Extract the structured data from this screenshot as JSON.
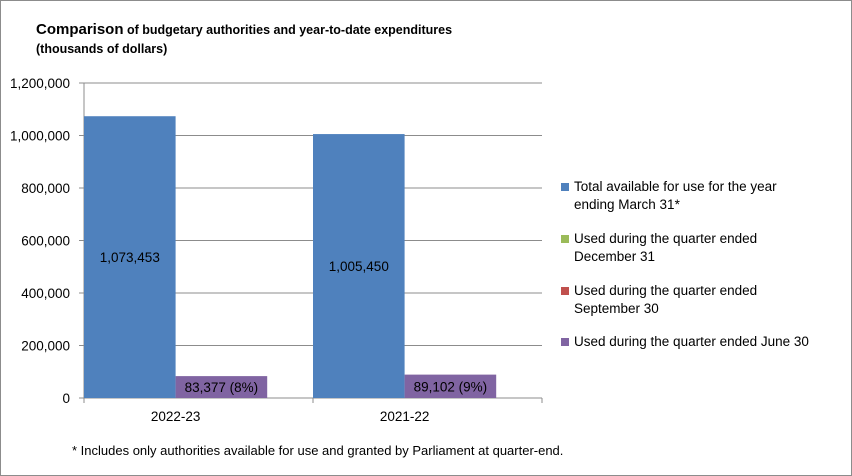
{
  "chart_data": {
    "type": "bar",
    "title_main": "Comparison",
    "title_rest": " of budgetary authorities and year-to-date expenditures",
    "subtitle": "(thousands of dollars)",
    "categories": [
      "2022-23",
      "2021-22"
    ],
    "series": [
      {
        "name": "Total available for use for the year ending March 31*",
        "values": [
          1073453,
          1005450
        ],
        "labels": [
          "1,073,453",
          "1,005,450"
        ],
        "color": "#4f81bd"
      },
      {
        "name": "Used during the quarter ended December 31",
        "values": [
          0,
          0
        ],
        "labels": [
          "",
          ""
        ],
        "color": "#9bbb59"
      },
      {
        "name": "Used during the quarter ended September 30",
        "values": [
          0,
          0
        ],
        "labels": [
          "",
          ""
        ],
        "color": "#c0504d"
      },
      {
        "name": "Used during the quarter ended June 30",
        "values": [
          83377,
          89102
        ],
        "labels": [
          "83,377 (8%)",
          "89,102 (9%)"
        ],
        "color": "#8064a2"
      }
    ],
    "ylim": [
      0,
      1200000
    ],
    "yticks": [
      0,
      200000,
      400000,
      600000,
      800000,
      1000000,
      1200000
    ],
    "ytick_labels": [
      "0",
      "200,000",
      "400,000",
      "600,000",
      "800,000",
      "1,000,000",
      "1,200,000"
    ],
    "legend_placement": "right",
    "grid": true
  },
  "legend": {
    "items": [
      {
        "line1": "Total available for use for the year",
        "line2": "ending March 31*"
      },
      {
        "line1": "Used during the quarter ended",
        "line2": "December 31"
      },
      {
        "line1": "Used during the quarter ended",
        "line2": "September 30"
      },
      {
        "line1": "Used during the quarter ended June 30",
        "line2": ""
      }
    ]
  },
  "footnote": "* Includes only authorities available for use and granted by Parliament at quarter-end."
}
